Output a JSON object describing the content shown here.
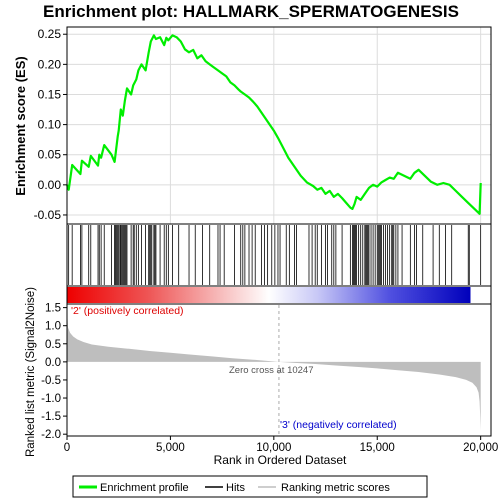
{
  "chart_data": {
    "type": "line",
    "title": "Enrichment plot: HALLMARK_SPERMATOGENESIS",
    "es_panel": {
      "ylabel": "Enrichment score (ES)",
      "ylim": [
        -0.065,
        0.262
      ],
      "yticks": [
        -0.05,
        0.0,
        0.05,
        0.1,
        0.15,
        0.2,
        0.25
      ],
      "ytick_labels": [
        "-0.05",
        "0.00",
        "0.05",
        "0.10",
        "0.15",
        "0.20",
        "0.25"
      ],
      "grid": true,
      "series": [
        {
          "name": "Enrichment profile",
          "color": "#00ee00",
          "x": [
            0,
            80,
            250,
            650,
            720,
            1050,
            1150,
            1500,
            1560,
            1650,
            1800,
            2150,
            2300,
            2450,
            2500,
            2600,
            2700,
            2800,
            2900,
            3100,
            3200,
            3350,
            3450,
            3600,
            3800,
            3950,
            4050,
            4200,
            4300,
            4500,
            4700,
            4800,
            4900,
            5100,
            5300,
            5500,
            5700,
            5900,
            6100,
            6300,
            6500,
            6700,
            6900,
            7100,
            7300,
            7500,
            7700,
            7900,
            8100,
            8300,
            8400,
            8600,
            8800,
            9000,
            9200,
            9400,
            9600,
            9800,
            10000,
            10200,
            10400,
            10700,
            11000,
            11300,
            11600,
            11900,
            12100,
            12300,
            12500,
            12700,
            12900,
            13100,
            13300,
            13500,
            13700,
            13800,
            13900,
            14000,
            14200,
            14400,
            14500,
            14600,
            14800,
            15000,
            15200,
            15400,
            15600,
            15800,
            16000,
            16300,
            16600,
            16800,
            17000,
            17300,
            17600,
            17900,
            18200,
            18500,
            18800,
            19100,
            19400,
            19700,
            19950,
            20000
          ],
          "y": [
            0.0,
            -0.008,
            0.033,
            0.018,
            0.04,
            0.03,
            0.048,
            0.032,
            0.05,
            0.045,
            0.066,
            0.05,
            0.038,
            0.08,
            0.09,
            0.125,
            0.115,
            0.14,
            0.16,
            0.15,
            0.165,
            0.175,
            0.19,
            0.2,
            0.19,
            0.22,
            0.238,
            0.248,
            0.242,
            0.245,
            0.232,
            0.244,
            0.24,
            0.248,
            0.245,
            0.238,
            0.225,
            0.22,
            0.224,
            0.21,
            0.215,
            0.205,
            0.2,
            0.195,
            0.19,
            0.185,
            0.18,
            0.17,
            0.165,
            0.158,
            0.155,
            0.15,
            0.145,
            0.138,
            0.13,
            0.12,
            0.11,
            0.1,
            0.09,
            0.078,
            0.065,
            0.045,
            0.03,
            0.015,
            0.004,
            -0.002,
            -0.008,
            -0.005,
            -0.015,
            -0.01,
            -0.02,
            -0.015,
            -0.022,
            -0.03,
            -0.038,
            -0.04,
            -0.032,
            -0.02,
            -0.025,
            -0.015,
            -0.01,
            -0.005,
            0.0,
            -0.003,
            0.004,
            0.008,
            0.012,
            0.01,
            0.02,
            0.015,
            0.01,
            0.02,
            0.025,
            0.015,
            0.005,
            0.0,
            0.003,
            0.0,
            -0.01,
            -0.02,
            -0.03,
            -0.04,
            -0.048,
            0.003
          ]
        }
      ]
    },
    "hits": [
      80,
      250,
      650,
      720,
      1050,
      1150,
      1500,
      1560,
      1650,
      1800,
      2150,
      2300,
      2350,
      2400,
      2450,
      2500,
      2560,
      2600,
      2650,
      2700,
      2750,
      2800,
      2850,
      2900,
      3100,
      3200,
      3250,
      3350,
      3450,
      3600,
      3800,
      3950,
      4000,
      4050,
      4100,
      4200,
      4250,
      4300,
      4500,
      4700,
      4800,
      4900,
      5100,
      5400,
      5900,
      6200,
      6550,
      6900,
      7300,
      7400,
      7600,
      8100,
      8400,
      8500,
      8600,
      8800,
      8950,
      9100,
      9400,
      9550,
      9700,
      9900,
      10050,
      10200,
      10300,
      10600,
      10750,
      11000,
      11100,
      11700,
      11850,
      12000,
      12100,
      12300,
      12500,
      12600,
      12800,
      12900,
      13000,
      13300,
      13700,
      13800,
      13850,
      13900,
      13950,
      14000,
      14100,
      14200,
      14300,
      14400,
      14450,
      14500,
      14550,
      14600,
      14700,
      14800,
      14900,
      15000,
      15050,
      15100,
      15150,
      15200,
      15300,
      15400,
      15500,
      15600,
      15700,
      15750,
      15800,
      15900,
      16000,
      16200,
      16600,
      16800,
      16900,
      17200,
      17700,
      18000,
      18300,
      18600,
      19400,
      19450,
      20000
    ],
    "metric_panel": {
      "ylabel": "Ranked list metric (Signal2Noise)",
      "xlabel": "Rank in Ordered Dataset",
      "ylim": [
        -2.05,
        1.6
      ],
      "yticks": [
        -2.0,
        -1.5,
        -1.0,
        -0.5,
        0.0,
        0.5,
        1.0,
        1.5
      ],
      "ytick_labels": [
        "-2.0",
        "-1.5",
        "-1.0",
        "-0.5",
        "0.0",
        "0.5",
        "1.0",
        "1.5"
      ],
      "xlim": [
        0,
        20500
      ],
      "xticks": [
        0,
        5000,
        10000,
        15000,
        20000
      ],
      "xtick_labels": [
        "0",
        "5,000",
        "10,000",
        "15,000",
        "20,000"
      ],
      "series_name": "Ranking metric scores",
      "color": "#bebebe",
      "profile_x": [
        0,
        50,
        150,
        300,
        500,
        800,
        1200,
        2000,
        3000,
        4000,
        5000,
        6000,
        7000,
        8000,
        9000,
        9800,
        10247,
        11000,
        12000,
        13000,
        14000,
        15000,
        16000,
        17000,
        18000,
        18800,
        19300,
        19600,
        19800,
        19900,
        19950,
        19980,
        20000
      ],
      "profile_y": [
        1.45,
        0.95,
        0.8,
        0.7,
        0.62,
        0.55,
        0.48,
        0.42,
        0.36,
        0.3,
        0.25,
        0.2,
        0.15,
        0.1,
        0.06,
        0.02,
        0.0,
        -0.03,
        -0.06,
        -0.1,
        -0.14,
        -0.18,
        -0.23,
        -0.28,
        -0.35,
        -0.42,
        -0.5,
        -0.58,
        -0.7,
        -0.85,
        -1.1,
        -1.5,
        -1.9
      ],
      "zero_cross_label": "Zero cross at 10247",
      "zero_cross_x": 10247,
      "pos_label": "'2' (positively correlated)",
      "neg_label": "'3' (negatively correlated)",
      "pos_color": "#dd0000",
      "neg_color": "#0000cc"
    },
    "legend": {
      "position": "bottom",
      "items": [
        {
          "label": "Enrichment profile",
          "color": "#00ee00",
          "kind": "thick-line"
        },
        {
          "label": "Hits",
          "color": "#000000",
          "kind": "line"
        },
        {
          "label": "Ranking metric scores",
          "color": "#bebebe",
          "kind": "line"
        }
      ]
    }
  }
}
